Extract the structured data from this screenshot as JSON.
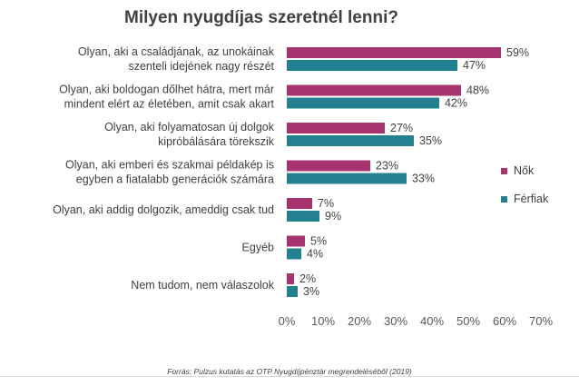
{
  "chart_data": {
    "type": "bar",
    "orientation": "horizontal",
    "title": "Milyen nyugdíjas szeretnél lenni?",
    "categories": [
      [
        "Olyan, aki a családjának, az unokáinak",
        "szenteli idejének nagy részét"
      ],
      [
        "Olyan, aki boldogan dőlhet hátra, mert már",
        "mindent elért az életében, amit csak akart"
      ],
      [
        "Olyan, aki folyamatosan új dolgok",
        "kipróbálására törekszik"
      ],
      [
        "Olyan, aki emberi és szakmai példakép is",
        "egyben a fiatalabb generációk számára"
      ],
      [
        "Olyan, aki addig dolgozik, ameddig csak tud"
      ],
      [
        "Egyéb"
      ],
      [
        "Nem tudom, nem válaszolok"
      ]
    ],
    "series": [
      {
        "name": "Nők",
        "color": "#a7336e",
        "values": [
          59,
          48,
          27,
          23,
          7,
          5,
          2
        ]
      },
      {
        "name": "Férfiak",
        "color": "#23808f",
        "values": [
          47,
          42,
          35,
          33,
          9,
          4,
          3
        ]
      }
    ],
    "value_suffix": "%",
    "xlim": [
      0,
      70
    ],
    "xticks": [
      "0%",
      "10%",
      "20%",
      "30%",
      "40%",
      "50%",
      "60%",
      "70%"
    ],
    "xtick_values": [
      0,
      10,
      20,
      30,
      40,
      50,
      60,
      70
    ],
    "grid": false,
    "legend_position": "right"
  },
  "source_text": "Forrás: Pulzus kutatás az OTP Nyugdíjpénztár megrendeléséből (2019)"
}
